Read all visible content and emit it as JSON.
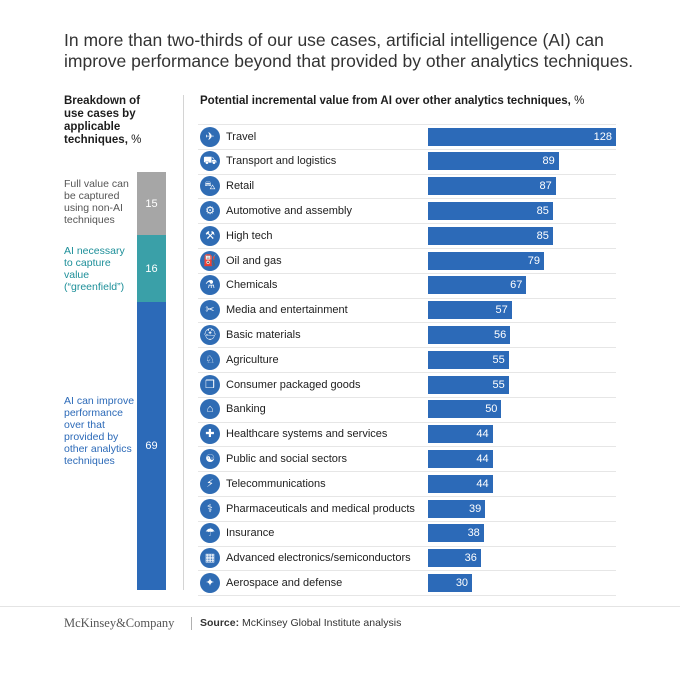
{
  "title": "In more than two-thirds of our use cases, artificial intelligence (AI) can improve performance beyond that provided by other analytics techniques.",
  "left_panel": {
    "heading": "Breakdown of use cases by applicable techniques,",
    "unit": "%",
    "segments": [
      {
        "name": "full-value",
        "label": "Full value can be captured using non-AI techniques",
        "value": 15,
        "color": "#a6a6a6",
        "label_color": "#555555"
      },
      {
        "name": "greenfield",
        "label": "AI necessary to capture value (“greenfield”)",
        "value": 16,
        "color": "#3aa0a8",
        "label_color": "#1d8f99"
      },
      {
        "name": "improve",
        "label": "AI can improve performance over that provided by other analytics techniques",
        "value": 69,
        "color": "#2c6ab8",
        "label_color": "#2c6ab8"
      }
    ]
  },
  "chart_data": {
    "type": "bar",
    "orientation": "horizontal",
    "title": "Potential incremental value from AI over other analytics techniques,",
    "unit": "%",
    "xlim": [
      0,
      128
    ],
    "categories": [
      "Travel",
      "Transport and logistics",
      "Retail",
      "Automotive and assembly",
      "High tech",
      "Oil and gas",
      "Chemicals",
      "Media and entertainment",
      "Basic materials",
      "Agriculture",
      "Consumer packaged goods",
      "Banking",
      "Healthcare systems and services",
      "Public and social sectors",
      "Telecommunications",
      "Pharmaceuticals and medical products",
      "Insurance",
      "Advanced electronics/semiconductors",
      "Aerospace and defense"
    ],
    "values": [
      128,
      89,
      87,
      85,
      85,
      79,
      67,
      57,
      56,
      55,
      55,
      50,
      44,
      44,
      44,
      39,
      38,
      36,
      30
    ],
    "icons": [
      "airplane-icon",
      "truck-icon",
      "shopping-cart-icon",
      "car-chassis-icon",
      "robot-arm-icon",
      "oil-pump-icon",
      "flask-icon",
      "directors-chair-icon",
      "hard-hat-icon",
      "cow-icon",
      "package-icon",
      "bank-icon",
      "medical-bag-icon",
      "handshake-icon",
      "antenna-icon",
      "pills-icon",
      "umbrella-document-icon",
      "microchip-icon",
      "satellite-icon"
    ],
    "glyphs": [
      "✈",
      "⛟",
      "⛍",
      "⚙",
      "⚒",
      "⛽",
      "⚗",
      "✂",
      "⛑",
      "♘",
      "❒",
      "⌂",
      "✚",
      "☯",
      "⚡",
      "⚕",
      "☂",
      "▦",
      "✦"
    ],
    "bar_color": "#2c6ab8"
  },
  "footer": {
    "logo": "McKinsey&Company",
    "source_label": "Source:",
    "source_text": "McKinsey Global Institute analysis"
  }
}
